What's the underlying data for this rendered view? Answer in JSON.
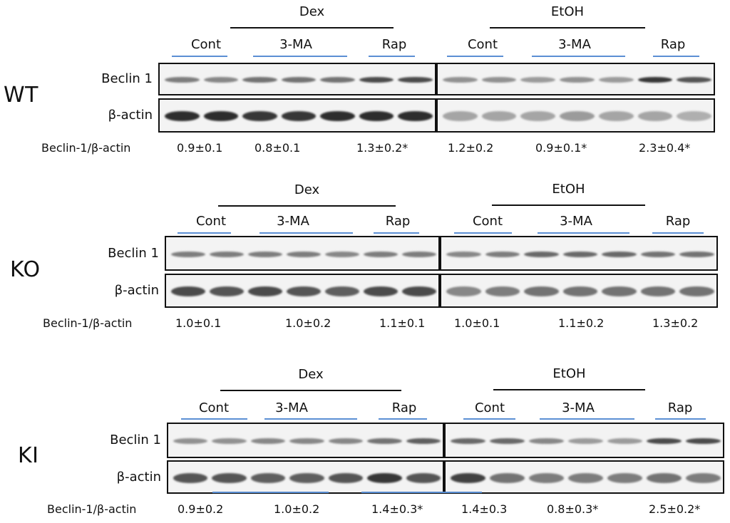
{
  "labels": {
    "dex": "Dex",
    "etoh": "EtOH",
    "cont": "Cont",
    "ma": "3-MA",
    "rap": "Rap",
    "beclin": "Beclin 1",
    "actin": "β-actin",
    "ratio": "Beclin-1/β-actin"
  },
  "panels": [
    {
      "id": "wt",
      "genotype": "WT",
      "dex_ratios": [
        "0.9±0.1",
        "0.8±0.1",
        "1.3±0.2*"
      ],
      "etoh_ratios": [
        "1.2±0.2",
        "0.9±0.1*",
        "2.3±0.4*"
      ],
      "beclin_dex_intensity": [
        0.55,
        0.5,
        0.6,
        0.6,
        0.6,
        0.8,
        0.8
      ],
      "beclin_etoh_intensity": [
        0.45,
        0.45,
        0.4,
        0.45,
        0.4,
        0.9,
        0.75
      ],
      "actin_dex_intensity": [
        0.95,
        0.95,
        0.9,
        0.9,
        0.95,
        0.95,
        0.95
      ],
      "actin_etoh_intensity": [
        0.35,
        0.35,
        0.35,
        0.4,
        0.35,
        0.35,
        0.3
      ]
    },
    {
      "id": "ko",
      "genotype": "KO",
      "dex_ratios": [
        "1.0±0.1",
        "1.0±0.2",
        "1.1±0.1"
      ],
      "etoh_ratios": [
        "1.0±0.1",
        "1.1±0.2",
        "1.3±0.2"
      ],
      "beclin_dex_intensity": [
        0.55,
        0.55,
        0.55,
        0.55,
        0.5,
        0.55,
        0.55
      ],
      "beclin_etoh_intensity": [
        0.5,
        0.55,
        0.65,
        0.65,
        0.65,
        0.6,
        0.6
      ],
      "actin_dex_intensity": [
        0.8,
        0.75,
        0.8,
        0.75,
        0.7,
        0.8,
        0.8
      ],
      "actin_etoh_intensity": [
        0.5,
        0.55,
        0.6,
        0.6,
        0.6,
        0.6,
        0.6
      ]
    },
    {
      "id": "ki",
      "genotype": "KI",
      "dex_ratios": [
        "0.9±0.2",
        "1.0±0.2",
        "1.4±0.3*"
      ],
      "etoh_ratios": [
        "1.4±0.3",
        "0.8±0.3*",
        "2.5±0.2*"
      ],
      "beclin_dex_intensity": [
        0.45,
        0.45,
        0.5,
        0.5,
        0.5,
        0.6,
        0.7
      ],
      "beclin_etoh_intensity": [
        0.65,
        0.65,
        0.5,
        0.4,
        0.4,
        0.8,
        0.8
      ],
      "actin_dex_intensity": [
        0.75,
        0.75,
        0.7,
        0.7,
        0.75,
        0.9,
        0.75
      ],
      "actin_etoh_intensity": [
        0.85,
        0.6,
        0.55,
        0.55,
        0.55,
        0.6,
        0.55
      ]
    }
  ]
}
